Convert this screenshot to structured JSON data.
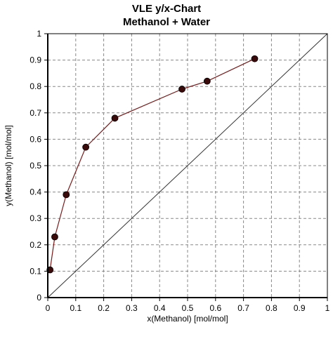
{
  "chart_data": {
    "type": "scatter",
    "title": "VLE y/x-Chart",
    "subtitle": "Methanol + Water",
    "xlabel": "x(Methanol) [mol/mol]",
    "ylabel": "y(Methanol) [mol/mol]",
    "xlim": [
      0,
      1
    ],
    "ylim": [
      0,
      1
    ],
    "grid": true,
    "x_ticks": [
      "0",
      "0.1",
      "0.2",
      "0.3",
      "0.4",
      "0.5",
      "0.6",
      "0.7",
      "0.8",
      "0.9",
      "1"
    ],
    "y_ticks": [
      "0",
      "0.1",
      "0.2",
      "0.3",
      "0.4",
      "0.5",
      "0.6",
      "0.7",
      "0.8",
      "0.9",
      "1"
    ],
    "series": [
      {
        "x": [
          0.008,
          0.025,
          0.066,
          0.136,
          0.24,
          0.48,
          0.57,
          0.74
        ],
        "y": [
          0.105,
          0.23,
          0.39,
          0.57,
          0.68,
          0.79,
          0.82,
          0.905
        ],
        "color": "#7a1a1a",
        "marker_color": "#3a0a0a"
      }
    ],
    "diagonal": {
      "x": [
        0,
        1
      ],
      "y": [
        0,
        1
      ],
      "color": "#333333"
    }
  }
}
